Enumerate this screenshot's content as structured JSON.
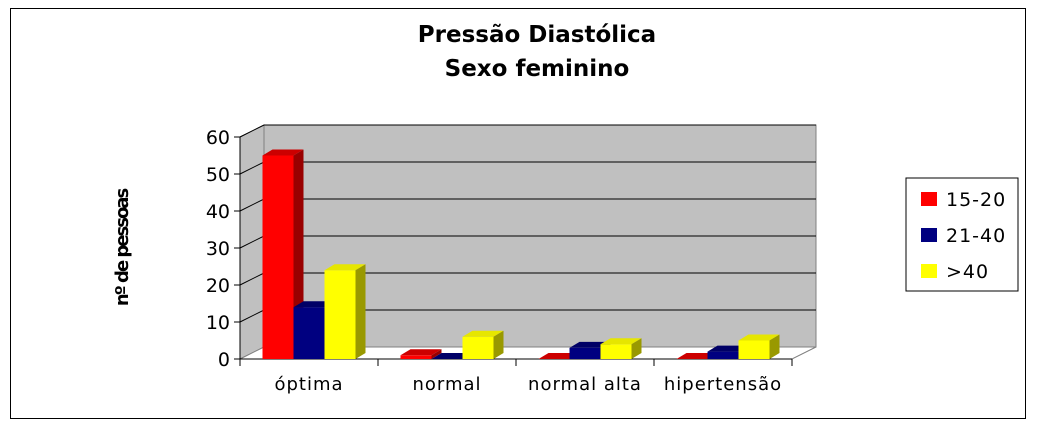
{
  "chart_data": {
    "type": "bar",
    "title": "Pressão Diastólica",
    "subtitle": "Sexo feminino",
    "ylabel": "nº de pessoas",
    "xlabel": "",
    "categories": [
      "óptima",
      "normal",
      "normal alta",
      "hipertensão"
    ],
    "series": [
      {
        "name": "15-20",
        "values": [
          55,
          1,
          0,
          0
        ],
        "color": "#ff0000",
        "top": "#cc0000",
        "side": "#990000"
      },
      {
        "name": "21-40",
        "values": [
          14,
          0,
          3,
          2
        ],
        "color": "#000080",
        "top": "#000066",
        "side": "#00004d"
      },
      {
        "name": ">40",
        "values": [
          24,
          6,
          4,
          5
        ],
        "color": "#ffff00",
        "top": "#e6e600",
        "side": "#999900"
      }
    ],
    "yticks": [
      0,
      10,
      20,
      30,
      40,
      50,
      60
    ],
    "ylim": [
      0,
      60
    ],
    "grid": true,
    "legend": "right",
    "projection": "3d"
  }
}
